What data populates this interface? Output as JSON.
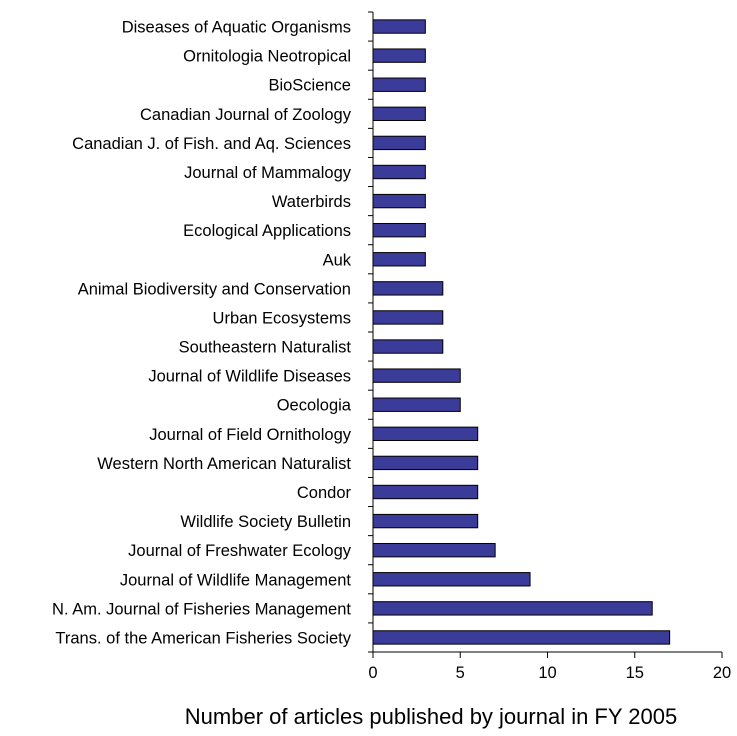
{
  "chart_data": {
    "type": "bar",
    "orientation": "horizontal",
    "categories": [
      "Diseases of Aquatic Organisms",
      "Ornitologia Neotropical",
      "BioScience",
      "Canadian Journal of Zoology",
      "Canadian J. of Fish. and Aq. Sciences",
      "Journal of Mammalogy",
      "Waterbirds",
      "Ecological Applications",
      "Auk",
      "Animal Biodiversity and Conservation",
      "Urban Ecosystems",
      "Southeastern Naturalist",
      "Journal of Wildlife Diseases",
      "Oecologia",
      "Journal of Field Ornithology",
      "Western North American Naturalist",
      "Condor",
      "Wildlife Society Bulletin",
      "Journal of Freshwater Ecology",
      "Journal of Wildlife Management",
      "N. Am. Journal of Fisheries Management",
      "Trans. of the American Fisheries Society"
    ],
    "values": [
      3,
      3,
      3,
      3,
      3,
      3,
      3,
      3,
      3,
      4,
      4,
      4,
      5,
      5,
      6,
      6,
      6,
      6,
      7,
      9,
      16,
      17
    ],
    "title": "",
    "xlabel": "Number of articles published by journal in FY 2005",
    "ylabel": "",
    "xlim": [
      0,
      20
    ],
    "xticks": [
      0,
      5,
      10,
      15,
      20
    ],
    "grid": false,
    "legend": "none",
    "bar_color": "#3b3b99",
    "bar_edge_color": "#000000"
  }
}
